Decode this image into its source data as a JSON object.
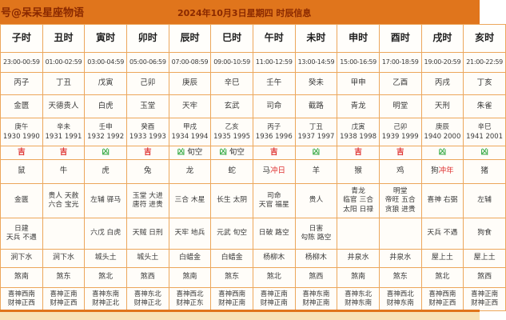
{
  "banner": {
    "account_label": "号@呆呆星座物语",
    "title": "2024年10月3日星期四 时辰信息"
  },
  "colors": {
    "banner_bg": "#e0751c",
    "banner_text": "#8a2900",
    "cell_border": "#eca75c",
    "auspicious_red": "#df3434",
    "inauspicious_green": "#3fae4e",
    "bottom_strip": "#f8e2b6"
  },
  "table": {
    "columns": [
      {
        "hour": "子时",
        "time": "23:00-00:59",
        "pillar": "丙子",
        "duty_god": "金匮",
        "chong_pillar": "庚午",
        "chong_years": "1930 1990",
        "luck": "吉",
        "luck_extra": "",
        "zodiac": "鼠",
        "zodiac_chong": "",
        "auspicious": [
          "金匮"
        ],
        "inauspicious": [
          "日建",
          "天兵 不遇"
        ],
        "nayin": "涧下水",
        "sha": "煞南",
        "xishen": "喜神西南",
        "caishen": "财神正西"
      },
      {
        "hour": "丑时",
        "time": "01:00-02:59",
        "pillar": "丁丑",
        "duty_god": "天德贵人",
        "chong_pillar": "辛未",
        "chong_years": "1931 1991",
        "luck": "吉",
        "luck_extra": "",
        "zodiac": "牛",
        "zodiac_chong": "",
        "auspicious": [
          "贵人 天赦",
          "六合 宝光"
        ],
        "inauspicious": [],
        "nayin": "涧下水",
        "sha": "煞东",
        "xishen": "喜神正南",
        "caishen": "财神正西"
      },
      {
        "hour": "寅时",
        "time": "03:00-04:59",
        "pillar": "戊寅",
        "duty_god": "白虎",
        "chong_pillar": "壬申",
        "chong_years": "1932 1992",
        "luck": "凶",
        "luck_extra": "",
        "zodiac": "虎",
        "zodiac_chong": "",
        "auspicious": [
          "左辅 驿马"
        ],
        "inauspicious": [
          "六戊 白虎"
        ],
        "nayin": "城头土",
        "sha": "煞北",
        "xishen": "喜神东南",
        "caishen": "财神正北"
      },
      {
        "hour": "卯时",
        "time": "05:00-06:59",
        "pillar": "己卯",
        "duty_god": "玉堂",
        "chong_pillar": "癸酉",
        "chong_years": "1933 1993",
        "luck": "吉",
        "luck_extra": "",
        "zodiac": "兔",
        "zodiac_chong": "",
        "auspicious": [
          "玉堂 大进",
          "唐符 进贵"
        ],
        "inauspicious": [
          "天贼 日刑"
        ],
        "nayin": "城头土",
        "sha": "煞西",
        "xishen": "喜神东北",
        "caishen": "财神正北"
      },
      {
        "hour": "辰时",
        "time": "07:00-08:59",
        "pillar": "庚辰",
        "duty_god": "天牢",
        "chong_pillar": "甲戌",
        "chong_years": "1934 1994",
        "luck": "凶",
        "luck_extra": "旬空",
        "zodiac": "龙",
        "zodiac_chong": "",
        "auspicious": [
          "三合 木星"
        ],
        "inauspicious": [
          "天牢 地兵"
        ],
        "nayin": "白蜡金",
        "sha": "煞南",
        "xishen": "喜神西北",
        "caishen": "财神正东"
      },
      {
        "hour": "巳时",
        "time": "09:00-10:59",
        "pillar": "辛巳",
        "duty_god": "玄武",
        "chong_pillar": "乙亥",
        "chong_years": "1935 1995",
        "luck": "凶",
        "luck_extra": "旬空",
        "zodiac": "蛇",
        "zodiac_chong": "",
        "auspicious": [
          "长生 太阴"
        ],
        "inauspicious": [
          "元武 旬空"
        ],
        "nayin": "白蜡金",
        "sha": "煞东",
        "xishen": "喜神西南",
        "caishen": "财神正南"
      },
      {
        "hour": "午时",
        "time": "11:00-12:59",
        "pillar": "壬午",
        "duty_god": "司命",
        "chong_pillar": "丙子",
        "chong_years": "1936 1996",
        "luck": "吉",
        "luck_extra": "",
        "zodiac": "马",
        "zodiac_chong": "冲日",
        "auspicious": [
          "司命",
          "天官 福星"
        ],
        "inauspicious": [
          "日破 路空"
        ],
        "nayin": "杨柳木",
        "sha": "煞北",
        "xishen": "喜神正南",
        "caishen": "财神正南"
      },
      {
        "hour": "未时",
        "time": "13:00-14:59",
        "pillar": "癸未",
        "duty_god": "截路",
        "chong_pillar": "丁丑",
        "chong_years": "1937 1997",
        "luck": "凶",
        "luck_extra": "",
        "zodiac": "羊",
        "zodiac_chong": "",
        "auspicious": [
          "贵人"
        ],
        "inauspicious": [
          "日害",
          "勾陈 路空"
        ],
        "nayin": "杨柳木",
        "sha": "煞西",
        "xishen": "喜神东南",
        "caishen": "财神正南"
      },
      {
        "hour": "申时",
        "time": "15:00-16:59",
        "pillar": "甲申",
        "duty_god": "青龙",
        "chong_pillar": "戊寅",
        "chong_years": "1938 1998",
        "luck": "吉",
        "luck_extra": "",
        "zodiac": "猴",
        "zodiac_chong": "",
        "auspicious": [
          "青龙",
          "临官 三合",
          "太阳 日禄"
        ],
        "inauspicious": [],
        "nayin": "井泉水",
        "sha": "煞南",
        "xishen": "喜神东北",
        "caishen": "财神东南"
      },
      {
        "hour": "酉时",
        "time": "17:00-18:59",
        "pillar": "乙酉",
        "duty_god": "明堂",
        "chong_pillar": "己卯",
        "chong_years": "1939 1999",
        "luck": "吉",
        "luck_extra": "",
        "zodiac": "鸡",
        "zodiac_chong": "",
        "auspicious": [
          "明堂",
          "帝旺 五合",
          "贪狼 进贵"
        ],
        "inauspicious": [],
        "nayin": "井泉水",
        "sha": "煞东",
        "xishen": "喜神西北",
        "caishen": "财神东南"
      },
      {
        "hour": "戌时",
        "time": "19:00-20:59",
        "pillar": "丙戌",
        "duty_god": "天刑",
        "chong_pillar": "庚辰",
        "chong_years": "1940 2000",
        "luck": "凶",
        "luck_extra": "",
        "zodiac": "狗",
        "zodiac_chong": "冲年",
        "auspicious": [
          "喜神 右弼"
        ],
        "inauspicious": [
          "天兵 不遇"
        ],
        "nayin": "屋上土",
        "sha": "煞北",
        "xishen": "喜神西南",
        "caishen": "财神正西"
      },
      {
        "hour": "亥时",
        "time": "21:00-22:59",
        "pillar": "丁亥",
        "duty_god": "朱雀",
        "chong_pillar": "辛巳",
        "chong_years": "1941 2001",
        "luck": "凶",
        "luck_extra": "",
        "zodiac": "猪",
        "zodiac_chong": "",
        "auspicious": [
          "左辅"
        ],
        "inauspicious": [
          "狗食"
        ],
        "nayin": "屋上土",
        "sha": "煞西",
        "xishen": "喜神正南",
        "caishen": "财神正西"
      }
    ]
  }
}
